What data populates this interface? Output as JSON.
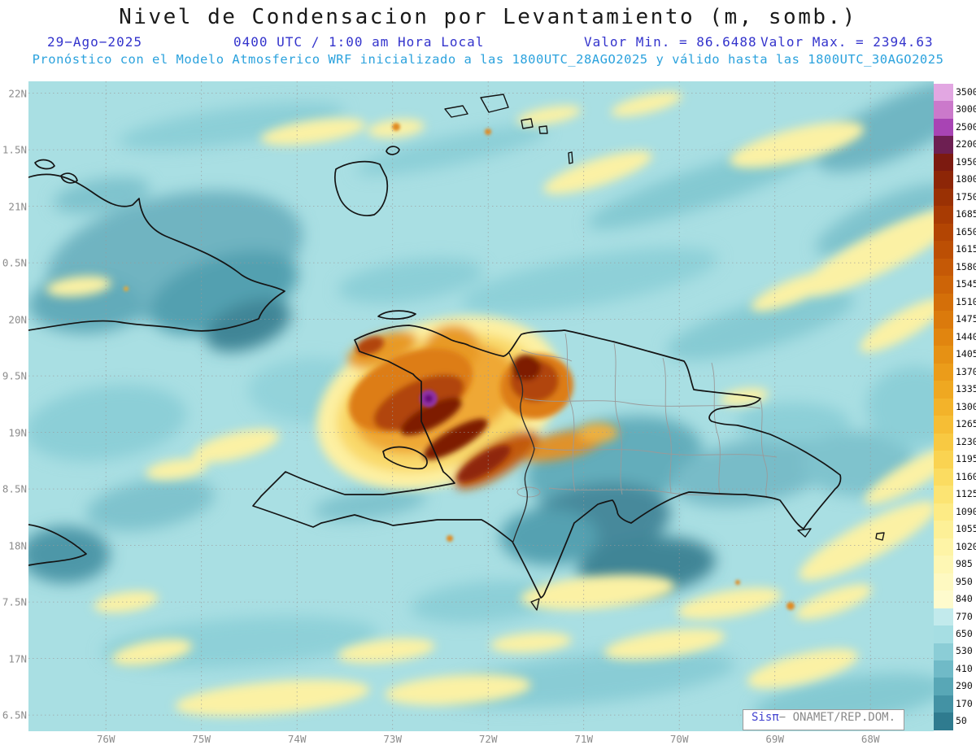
{
  "header": {
    "title": "Nivel de Condensacion por Levantamiento (m, somb.)",
    "date": "29−Ago−2025",
    "time": "0400 UTC / 1:00 am Hora Local",
    "min_label": "Valor Min. = 86.6488",
    "max_label": "Valor Max. = 2394.63",
    "forecast_line": "Pronóstico con el Modelo Atmosferico WRF inicializado a las 1800UTC_28AGO2025 y válido hasta las  1800UTC_30AGO2025"
  },
  "map": {
    "lat_ticks": [
      "22N",
      "1.5N",
      "21N",
      "0.5N",
      "20N",
      "9.5N",
      "19N",
      "8.5N",
      "18N",
      "7.5N",
      "17N",
      "6.5N"
    ],
    "lon_ticks": [
      "76W",
      "75W",
      "74W",
      "73W",
      "72W",
      "71W",
      "70W",
      "69W",
      "68W"
    ]
  },
  "colorbar": {
    "entries": [
      {
        "v": "3500",
        "c": "#e2a7e2"
      },
      {
        "v": "3000",
        "c": "#cb79cb"
      },
      {
        "v": "2500",
        "c": "#a844b4"
      },
      {
        "v": "2200",
        "c": "#6d1f52"
      },
      {
        "v": "1950",
        "c": "#7c1a10"
      },
      {
        "v": "1800",
        "c": "#8d2607"
      },
      {
        "v": "1750",
        "c": "#9a3104"
      },
      {
        "v": "1685",
        "c": "#a83b03"
      },
      {
        "v": "1650",
        "c": "#b34503"
      },
      {
        "v": "1615",
        "c": "#bc4f04"
      },
      {
        "v": "1580",
        "c": "#c55906"
      },
      {
        "v": "1545",
        "c": "#cd6407"
      },
      {
        "v": "1510",
        "c": "#d46f09"
      },
      {
        "v": "1475",
        "c": "#db7a0c"
      },
      {
        "v": "1440",
        "c": "#e1850f"
      },
      {
        "v": "1405",
        "c": "#e69114"
      },
      {
        "v": "1370",
        "c": "#eb9c1a"
      },
      {
        "v": "1335",
        "c": "#efa821"
      },
      {
        "v": "1300",
        "c": "#f3b32a"
      },
      {
        "v": "1265",
        "c": "#f6be35"
      },
      {
        "v": "1230",
        "c": "#f8c942"
      },
      {
        "v": "1195",
        "c": "#fad351"
      },
      {
        "v": "1160",
        "c": "#fbdc61"
      },
      {
        "v": "1125",
        "c": "#fce473"
      },
      {
        "v": "1090",
        "c": "#fdeb85"
      },
      {
        "v": "1055",
        "c": "#fdf097"
      },
      {
        "v": "1020",
        "c": "#fef4a6"
      },
      {
        "v": "985",
        "c": "#fef7b4"
      },
      {
        "v": "950",
        "c": "#fef9c1"
      },
      {
        "v": "840",
        "c": "#fefbcd"
      },
      {
        "v": "770",
        "c": "#c2eaec"
      },
      {
        "v": "650",
        "c": "#a6dee3"
      },
      {
        "v": "530",
        "c": "#8bcdd6"
      },
      {
        "v": "410",
        "c": "#70bac7"
      },
      {
        "v": "290",
        "c": "#58a7b6"
      },
      {
        "v": "170",
        "c": "#4392a4"
      },
      {
        "v": "50",
        "c": "#2f7b8f"
      }
    ]
  },
  "watermark": {
    "brand": "Sisπ",
    "rest": "− ONAMET/REP.DOM."
  },
  "chart_data": {
    "type": "heatmap",
    "subtype": "filled_contour_map",
    "variable": "Nivel de Condensacion por Levantamiento",
    "units": "m",
    "title": "Nivel de Condensacion por Levantamiento (m, somb.)",
    "date": "29-Ago-2025",
    "valid_time": "0400 UTC / 1:00 am Hora Local",
    "model": "WRF",
    "initialized": "1800UTC_28AGO2025",
    "valid_until": "1800UTC_30AGO2025",
    "value_min": 86.6488,
    "value_max": 2394.63,
    "region": {
      "lat_min": "16.5N",
      "lat_max": "22N",
      "lon_min": "76W",
      "lon_max": "68W"
    },
    "graticule": {
      "lat_step_deg": 0.5,
      "lon_step_deg": 1,
      "style": "dashed"
    },
    "levels": [
      50,
      170,
      290,
      410,
      530,
      650,
      770,
      840,
      950,
      985,
      1020,
      1055,
      1090,
      1125,
      1160,
      1195,
      1230,
      1265,
      1300,
      1335,
      1370,
      1405,
      1440,
      1475,
      1510,
      1545,
      1580,
      1615,
      1650,
      1685,
      1750,
      1800,
      1950,
      2200,
      2500,
      3000,
      3500
    ],
    "notes": "Lifting condensation level field: mostly cyan/teal (300-800 m) over ocean and eastern Cuba; pale yellow streaks (850-1100 m) scattered; high-value orange/red/maroon region (1400-2200 m) over northern Haiti and central Hispaniola with purple maximum near 72.7W 19.4N; legend_position: right"
  }
}
